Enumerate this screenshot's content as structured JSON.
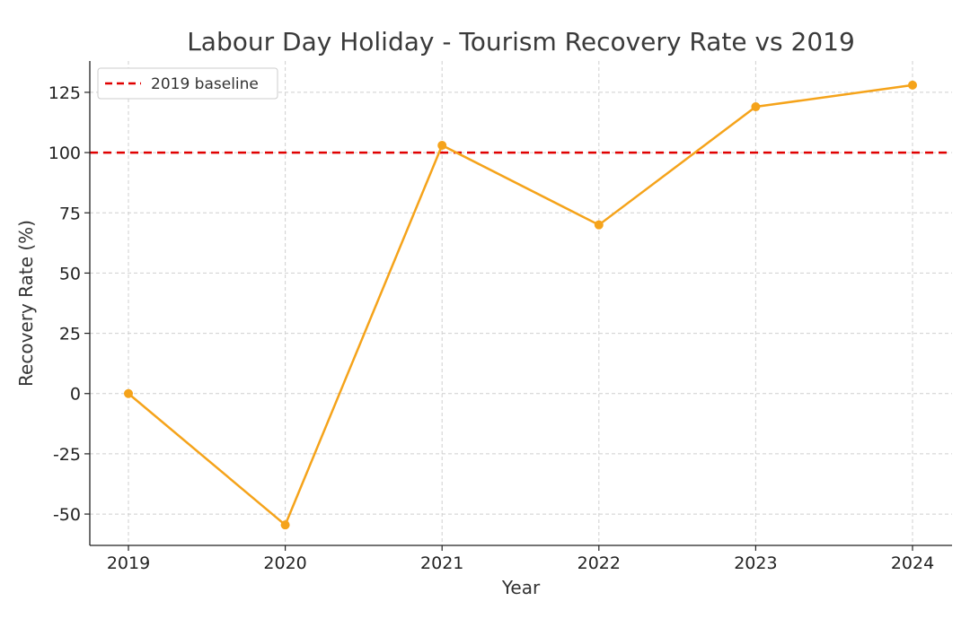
{
  "chart_data": {
    "type": "line",
    "title": "Labour Day Holiday - Tourism Recovery Rate vs 2019",
    "xlabel": "Year",
    "ylabel": "Recovery Rate (%)",
    "categories": [
      "2019",
      "2020",
      "2021",
      "2022",
      "2023",
      "2024"
    ],
    "series": [
      {
        "values": [
          0,
          -54.5,
          103,
          70,
          119,
          128
        ],
        "color": "#f5a31a"
      }
    ],
    "baseline": {
      "label": "2019 baseline",
      "value": 100,
      "color": "#e00000",
      "style": "dashed"
    },
    "yticks": [
      -50,
      -25,
      0,
      25,
      50,
      75,
      100,
      125
    ],
    "ylim": [
      -63,
      138
    ],
    "grid": true,
    "legend_position": "top-left"
  }
}
